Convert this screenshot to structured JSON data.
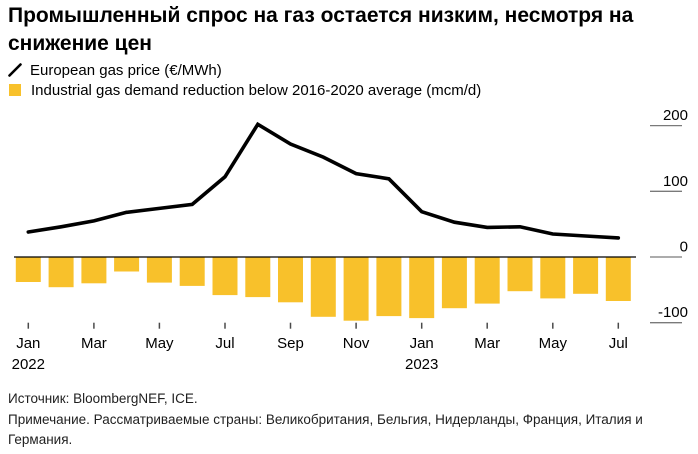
{
  "title": "Промышленный спрос на газ остается низким, несмотря на снижение цен",
  "legend": [
    {
      "label": "European gas price (€/MWh)",
      "type": "line",
      "color": "#000000"
    },
    {
      "label": "Industrial gas demand reduction below 2016-2020 average (mcm/d)",
      "type": "bar",
      "color": "#F8C12B"
    }
  ],
  "colors": {
    "bar_yellow": "#F8C12B",
    "line_black": "#000000",
    "axis_tick_gray": "#7a7a7a",
    "x_tick_dark": "#4a4a4a"
  },
  "chart_data": {
    "type": "bar",
    "subtype": "bar-and-line combo",
    "x": [
      "Jan 2022",
      "Feb 2022",
      "Mar 2022",
      "Apr 2022",
      "May 2022",
      "Jun 2022",
      "Jul 2022",
      "Aug 2022",
      "Sep 2022",
      "Oct 2022",
      "Nov 2022",
      "Dec 2022",
      "Jan 2023",
      "Feb 2023",
      "Mar 2023",
      "Apr 2023",
      "May 2023",
      "Jun 2023",
      "Jul 2023"
    ],
    "series": [
      {
        "name": "European gas price (€/MWh)",
        "type": "line",
        "color": "#000000",
        "values": [
          38,
          46,
          55,
          68,
          74,
          80,
          122,
          202,
          172,
          152,
          127,
          119,
          69,
          53,
          45,
          46,
          35,
          32,
          29
        ]
      },
      {
        "name": "Industrial gas demand reduction below 2016-2020 average (mcm/d)",
        "type": "bar",
        "color": "#F8C12B",
        "values": [
          -38,
          -46,
          -40,
          -22,
          -39,
          -44,
          -58,
          -61,
          -69,
          -91,
          -97,
          -90,
          -93,
          -78,
          -71,
          -52,
          -63,
          -56,
          -67
        ]
      }
    ],
    "x_tick_labels": [
      "Jan",
      "Mar",
      "May",
      "Jul",
      "Sep",
      "Nov",
      "Jan",
      "Mar",
      "May",
      "Jul"
    ],
    "year_labels": [
      {
        "text": "2022",
        "month_index": 0
      },
      {
        "text": "2023",
        "month_index": 12
      }
    ],
    "y_ticks": [
      200,
      100,
      0,
      -100
    ],
    "ylim": [
      -105,
      210
    ],
    "grid": false,
    "legend_position": "top-left",
    "y_axis_side": "right"
  },
  "footer": {
    "source": "Источник: BloombergNEF, ICE.",
    "note": "Примечание. Рассматриваемые страны: Великобритания, Бельгия, Нидерланды, Франция, Италия и Германия."
  }
}
